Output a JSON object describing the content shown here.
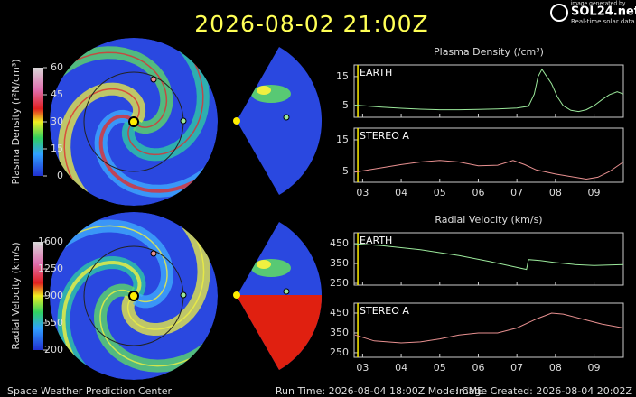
{
  "header": {
    "title": "2026-08-02 21:00Z"
  },
  "logo": {
    "caption": "image generated by",
    "name": "SOL24.net",
    "tagline": "Real-time solar data"
  },
  "colorbars": [
    {
      "label": "Plasma Density (r²N/cm³)",
      "lim": [
        0,
        60
      ],
      "ticks": [
        0,
        15,
        30,
        45,
        60
      ]
    },
    {
      "label": "Radial Velocity (km/s)",
      "lim": [
        200,
        1600
      ],
      "ticks": [
        200,
        550,
        900,
        1250,
        1600
      ]
    }
  ],
  "chart_data": [
    {
      "type": "line",
      "title": "Plasma Density (/cm³)",
      "x": [
        2.8,
        3.0,
        3.5,
        4.0,
        4.5,
        5.0,
        5.5,
        6.0,
        6.5,
        7.0,
        7.3,
        7.45,
        7.55,
        7.65,
        7.75,
        7.9,
        8.05,
        8.2,
        8.4,
        8.6,
        8.8,
        9.0,
        9.2,
        9.4,
        9.6,
        9.76
      ],
      "series": [
        {
          "name": "EARTH",
          "color": "#9be89b",
          "values": [
            5.2,
            5.0,
            4.5,
            4.1,
            3.8,
            3.6,
            3.6,
            3.7,
            3.9,
            4.2,
            4.8,
            9,
            15,
            17.5,
            15.5,
            12.5,
            8,
            5,
            3.4,
            3.0,
            3.6,
            5.0,
            7.0,
            8.8,
            9.8,
            9.0
          ]
        }
      ],
      "xlim": [
        2.78,
        9.76
      ],
      "xticks": [
        3,
        4,
        5,
        6,
        7,
        8,
        9
      ],
      "ylim": [
        1,
        19
      ],
      "yticks": [
        5,
        15
      ],
      "current_time_x": 2.875
    },
    {
      "type": "line",
      "x": [
        2.8,
        3.0,
        3.5,
        4.0,
        4.5,
        5.0,
        5.5,
        6.0,
        6.5,
        6.9,
        7.2,
        7.5,
        8.0,
        8.5,
        8.8,
        9.1,
        9.4,
        9.76
      ],
      "series": [
        {
          "name": "STEREO A",
          "color": "#e89090",
          "values": [
            4.8,
            5.2,
            6.2,
            7.2,
            8.0,
            8.5,
            8.0,
            6.8,
            7.0,
            8.5,
            7.2,
            5.5,
            4.2,
            3.2,
            2.6,
            3.2,
            5.0,
            8.0
          ]
        }
      ],
      "xlim": [
        2.78,
        9.76
      ],
      "xticks": [
        {
          "value": 3,
          "label": "03"
        },
        {
          "value": 4,
          "label": "04"
        },
        {
          "value": 5,
          "label": "05"
        },
        {
          "value": 6,
          "label": "06"
        },
        {
          "value": 7,
          "label": "07"
        },
        {
          "value": 8,
          "label": "08"
        },
        {
          "value": 9,
          "label": "09"
        }
      ],
      "ylim": [
        1.6,
        18.7
      ],
      "yticks": [
        5,
        15
      ],
      "current_time_x": 2.875
    },
    {
      "type": "line",
      "title": "Radial Velocity (km/s)",
      "x": [
        2.8,
        3.5,
        4.5,
        5.5,
        6.3,
        7.0,
        7.25,
        7.3,
        7.6,
        8.0,
        8.5,
        9.0,
        9.76
      ],
      "series": [
        {
          "name": "EARTH",
          "color": "#9be89b",
          "values": [
            450,
            440,
            420,
            390,
            360,
            330,
            320,
            370,
            365,
            355,
            345,
            340,
            345
          ]
        }
      ],
      "xlim": [
        2.78,
        9.76
      ],
      "xticks": [
        3,
        4,
        5,
        6,
        7,
        8,
        9
      ],
      "ylim": [
        241,
        505
      ],
      "yticks": [
        250,
        350,
        450
      ],
      "current_time_x": 2.875
    },
    {
      "type": "line",
      "x": [
        2.8,
        3.3,
        4.0,
        4.5,
        5.0,
        5.5,
        6.0,
        6.5,
        7.0,
        7.5,
        7.9,
        8.2,
        8.7,
        9.2,
        9.76
      ],
      "series": [
        {
          "name": "STEREO A",
          "color": "#e89090",
          "values": [
            340,
            310,
            300,
            305,
            320,
            340,
            350,
            350,
            375,
            420,
            450,
            445,
            420,
            395,
            375
          ]
        }
      ],
      "xlim": [
        2.78,
        9.76
      ],
      "xticks": [
        {
          "value": 3,
          "label": "03"
        },
        {
          "value": 4,
          "label": "04"
        },
        {
          "value": 5,
          "label": "05"
        },
        {
          "value": 6,
          "label": "06"
        },
        {
          "value": 7,
          "label": "07"
        },
        {
          "value": 8,
          "label": "08"
        },
        {
          "value": 9,
          "label": "09"
        }
      ],
      "ylim": [
        227,
        500
      ],
      "yticks": [
        250,
        350,
        450
      ],
      "current_time_x": 2.875
    }
  ],
  "footer": {
    "left": "Space Weather Prediction Center",
    "center": "Run Time: 2026-08-04 18:00Z  Mode: CME",
    "right": "Image Created: 2026-08-04 20:02Z"
  }
}
